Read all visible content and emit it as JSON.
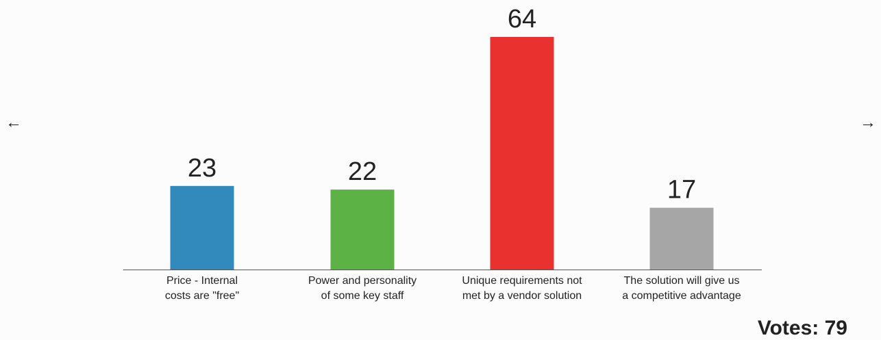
{
  "chart_data": {
    "type": "bar",
    "categories": [
      [
        "Price - Internal",
        "costs are \"free\""
      ],
      [
        "Power and personality",
        "of some key staff"
      ],
      [
        "Unique requirements not",
        "met by a vendor solution"
      ],
      [
        "The solution will give us",
        "a competitive advantage"
      ]
    ],
    "values": [
      23,
      22,
      64,
      17
    ],
    "colors": [
      "#3289bb",
      "#5cb245",
      "#e9322f",
      "#a6a6a6"
    ],
    "footer": "Votes: 79",
    "nav": {
      "prev": "←",
      "next": "→"
    }
  }
}
